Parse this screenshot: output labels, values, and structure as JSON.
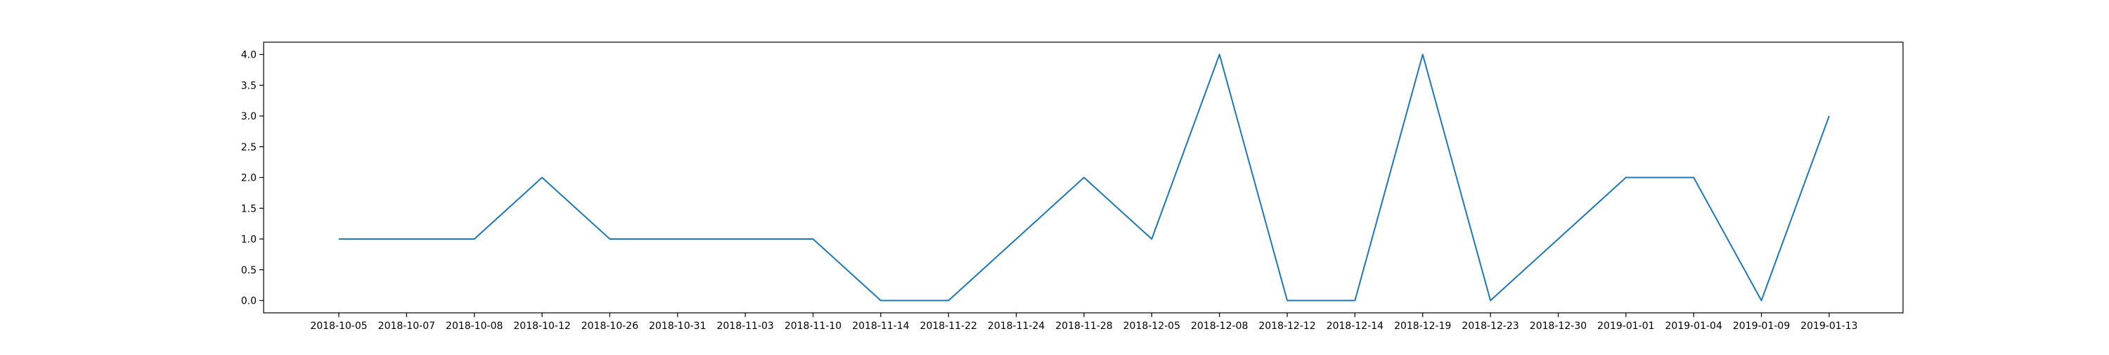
{
  "chart_data": {
    "type": "line",
    "title": "",
    "xlabel": "",
    "ylabel": "",
    "x": [
      "2018-10-05",
      "2018-10-07",
      "2018-10-08",
      "2018-10-12",
      "2018-10-26",
      "2018-10-31",
      "2018-11-03",
      "2018-11-10",
      "2018-11-14",
      "2018-11-22",
      "2018-11-24",
      "2018-11-28",
      "2018-12-05",
      "2018-12-08",
      "2018-12-12",
      "2018-12-14",
      "2018-12-19",
      "2018-12-23",
      "2018-12-30",
      "2019-01-01",
      "2019-01-04",
      "2019-01-09",
      "2019-01-13"
    ],
    "series": [
      {
        "values": [
          1,
          1,
          1,
          2,
          1,
          1,
          1,
          1,
          0,
          0,
          1,
          2,
          1,
          4,
          0,
          0,
          4,
          0,
          1,
          2,
          2,
          0,
          3
        ],
        "color": "#1f77b4"
      }
    ],
    "yticks": [
      "0.0",
      "0.5",
      "1.0",
      "1.5",
      "2.0",
      "2.5",
      "3.0",
      "3.5",
      "4.0"
    ],
    "ylim": [
      -0.2,
      4.2
    ],
    "grid": false,
    "legend": "none"
  }
}
